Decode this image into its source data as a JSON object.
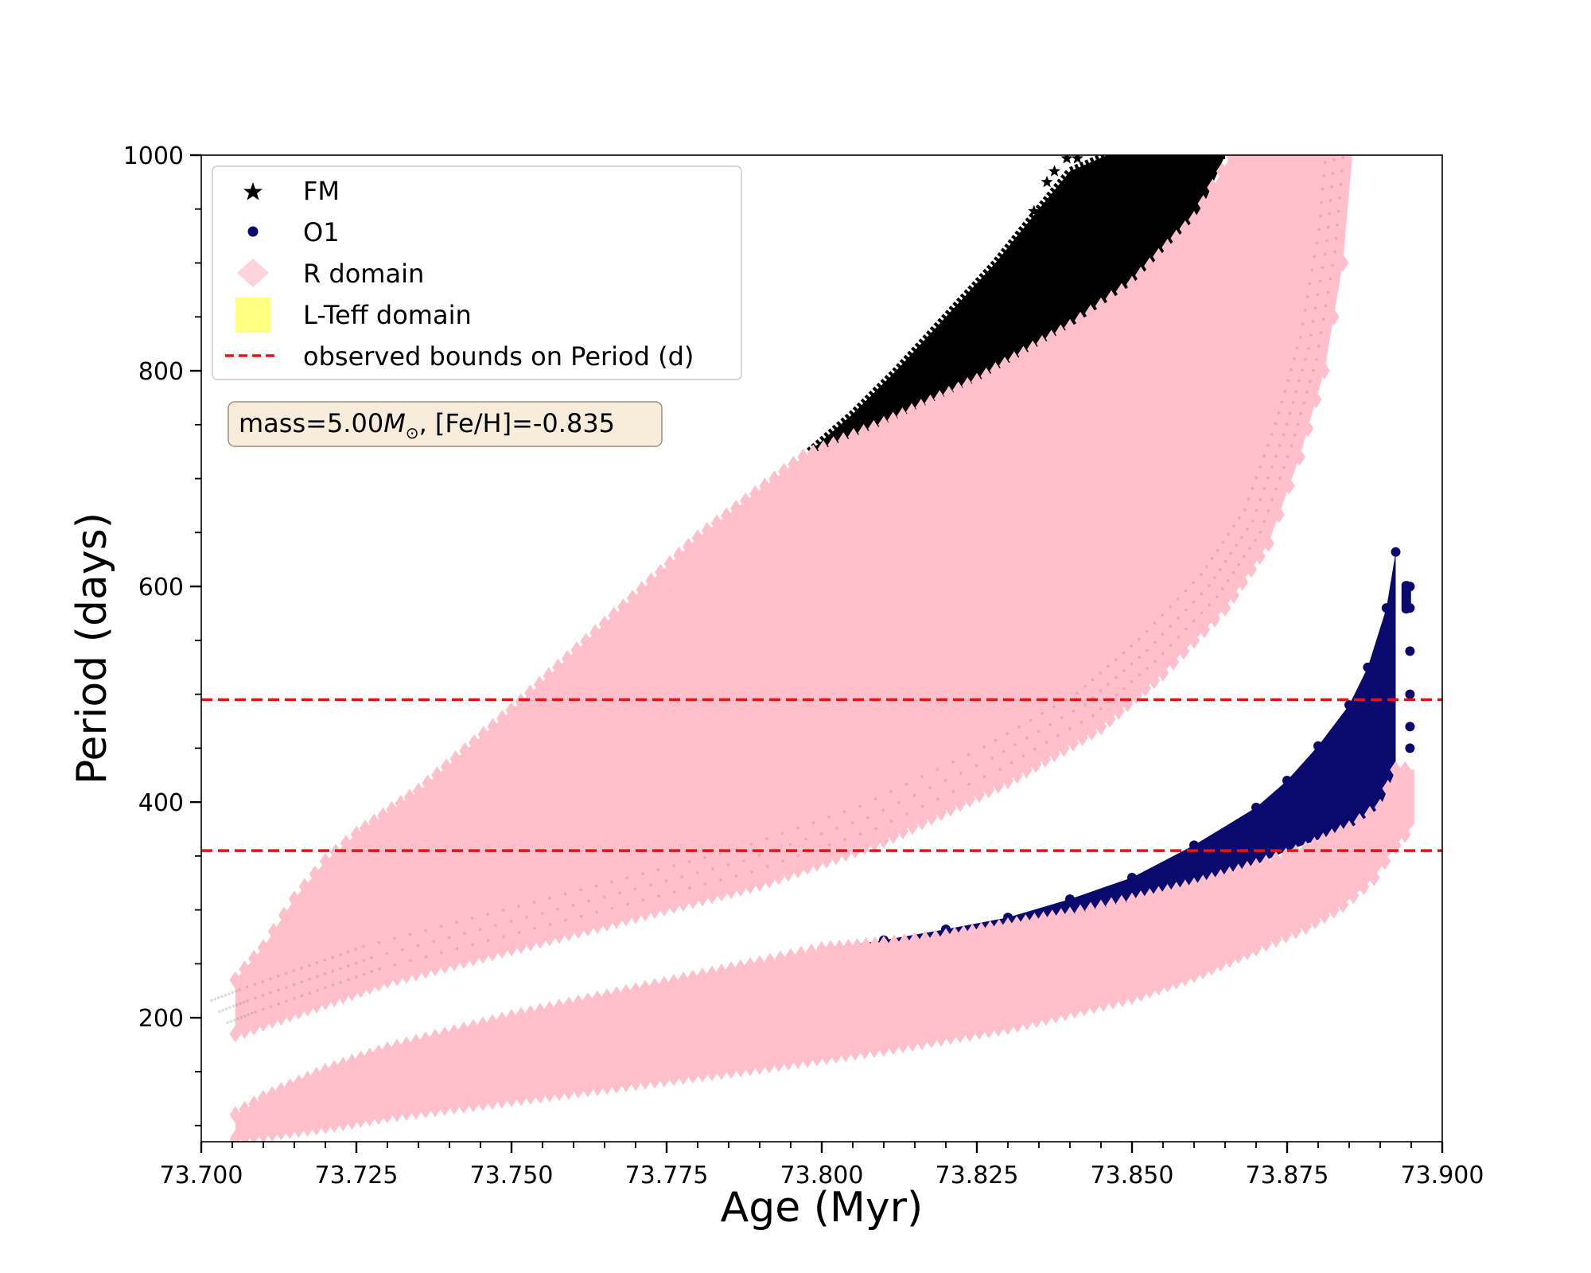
{
  "chart_data": {
    "type": "scatter",
    "title": "",
    "xlabel": "Age (Myr)",
    "ylabel": "Period (days)",
    "xlim": [
      73.7,
      73.9
    ],
    "ylim": [
      85,
      1000
    ],
    "xticks": [
      "73.700",
      "73.725",
      "73.750",
      "73.775",
      "73.800",
      "73.825",
      "73.850",
      "73.875",
      "73.900"
    ],
    "xtick_values": [
      73.7,
      73.725,
      73.75,
      73.775,
      73.8,
      73.825,
      73.85,
      73.875,
      73.9
    ],
    "yticks": [
      "200",
      "400",
      "600",
      "800",
      "1000"
    ],
    "ytick_values": [
      200,
      400,
      600,
      800,
      1000
    ],
    "grid": false,
    "legend_position": "top-left",
    "annotation": {
      "prefix": "mass=5.00",
      "symbol": "M",
      "subscript": "⊙",
      "suffix": ", [Fe/H]=-0.835"
    },
    "series": [
      {
        "name": "FM",
        "marker": "star",
        "color": "#000000",
        "upper": {
          "x": [
            73.798,
            73.805,
            73.812,
            73.82,
            73.828,
            73.835,
            73.84,
            73.846,
            73.852,
            73.86,
            73.865
          ],
          "y": [
            725,
            760,
            800,
            850,
            900,
            950,
            985,
            1000,
            1000,
            1000,
            1000
          ]
        },
        "lower": {
          "x": [
            73.798,
            73.805,
            73.812,
            73.82,
            73.828,
            73.835,
            73.843,
            73.85,
            73.857,
            73.862,
            73.865
          ],
          "y": [
            720,
            728,
            740,
            757,
            778,
            800,
            830,
            865,
            910,
            960,
            1000
          ]
        },
        "outliers": {
          "x": [
            73.8395,
            73.8412,
            73.8363,
            73.8342,
            73.8375
          ],
          "y": [
            997,
            997,
            975,
            948,
            985
          ]
        }
      },
      {
        "name": "O1",
        "marker": "circle",
        "color": "#0a0a6e",
        "upper": {
          "x": [
            73.8,
            73.81,
            73.82,
            73.83,
            73.84,
            73.85,
            73.86,
            73.87,
            73.875,
            73.88,
            73.885,
            73.888,
            73.891,
            73.8925
          ],
          "y": [
            263,
            272,
            282,
            293,
            310,
            330,
            360,
            395,
            420,
            452,
            490,
            525,
            580,
            632
          ]
        },
        "lower": {
          "x": [
            73.8,
            73.81,
            73.82,
            73.83,
            73.84,
            73.85,
            73.86,
            73.87,
            73.875,
            73.88,
            73.885,
            73.888,
            73.891,
            73.8925
          ],
          "y": [
            262,
            266,
            272,
            280,
            290,
            303,
            320,
            342,
            355,
            365,
            375,
            385,
            400,
            410
          ]
        },
        "outliers": {
          "x": [
            73.8948,
            73.8948,
            73.8948,
            73.8948,
            73.8948,
            73.8948
          ],
          "y": [
            600,
            580,
            540,
            500,
            470,
            450
          ]
        }
      },
      {
        "name": "R domain",
        "marker": "diamond",
        "color": "#ffc0cb",
        "bands": [
          {
            "upper": {
              "x": [
                73.7055,
                73.71,
                73.715,
                73.72,
                73.725,
                73.735,
                73.75,
                73.765,
                73.78,
                73.797,
                73.81,
                73.825,
                73.84,
                73.85,
                73.86,
                73.866,
                73.875
              ],
              "y": [
                235,
                265,
                310,
                345,
                370,
                410,
                485,
                565,
                645,
                720,
                750,
                790,
                840,
                880,
                940,
                1000,
                1000
              ]
            },
            "lower": {
              "x": [
                73.7055,
                73.71,
                73.72,
                73.73,
                73.75,
                73.77,
                73.79,
                73.81,
                73.83,
                73.845,
                73.855,
                73.865,
                73.872,
                73.877,
                73.881,
                73.884,
                73.8855
              ],
              "y": [
                185,
                195,
                215,
                235,
                265,
                295,
                325,
                365,
                420,
                470,
                520,
                580,
                640,
                720,
                800,
                900,
                1000
              ]
            }
          },
          {
            "upper": {
              "x": [
                73.7055,
                73.71,
                73.72,
                73.73,
                73.75,
                73.77,
                73.79,
                73.8,
                73.81,
                73.82,
                73.83,
                73.84,
                73.85,
                73.86,
                73.87,
                73.878,
                73.885,
                73.89,
                73.8925,
                73.8955
              ],
              "y": [
                110,
                125,
                150,
                170,
                200,
                225,
                250,
                263,
                268,
                275,
                285,
                295,
                308,
                322,
                340,
                356,
                375,
                395,
                430,
                430
              ]
            },
            "lower": {
              "x": [
                73.7055,
                73.71,
                73.72,
                73.73,
                73.75,
                73.77,
                73.79,
                73.81,
                73.83,
                73.85,
                73.86,
                73.87,
                73.878,
                73.884,
                73.889,
                73.8925,
                73.8955
              ],
              "y": [
                88,
                92,
                100,
                110,
                125,
                140,
                155,
                172,
                192,
                220,
                240,
                265,
                285,
                305,
                330,
                360,
                380
              ]
            }
          }
        ]
      },
      {
        "name": "L-Teff domain",
        "marker": "square",
        "color": "#ffff80",
        "points": []
      }
    ],
    "hlines": {
      "name": "observed bounds on Period (d)",
      "color": "#ee1111",
      "style": "dashed",
      "values": [
        495,
        355
      ]
    }
  }
}
